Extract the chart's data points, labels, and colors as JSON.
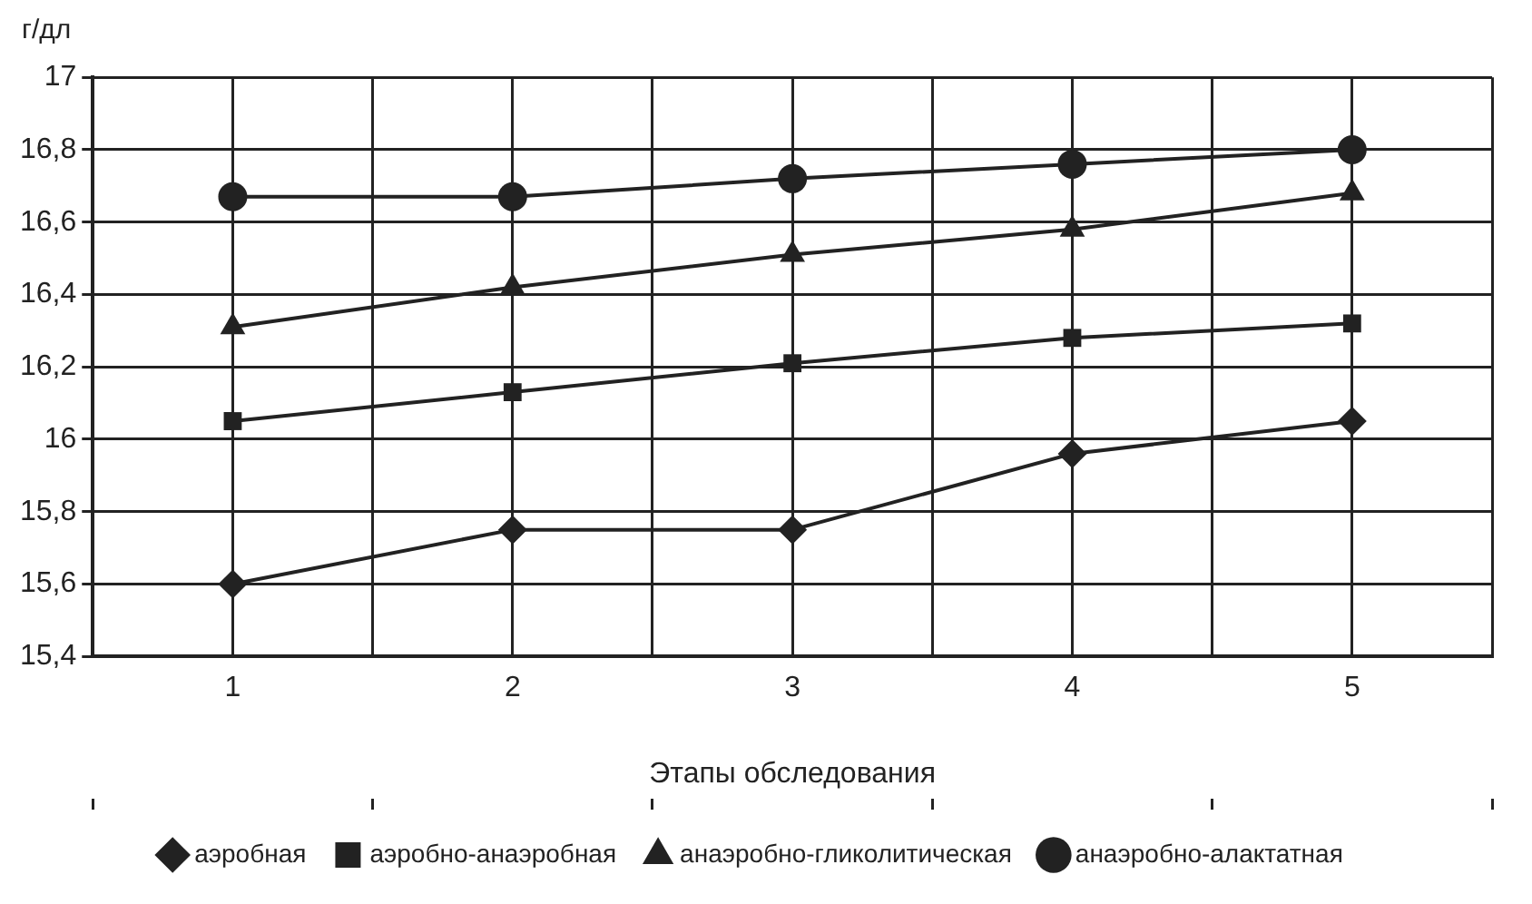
{
  "chart_data": {
    "type": "line",
    "ylabel": "г/дл",
    "xlabel": "Этапы обследования",
    "categories": [
      "1",
      "2",
      "3",
      "4",
      "5"
    ],
    "series": [
      {
        "name": "аэробная",
        "color": "#222222",
        "marker": "diamond",
        "values": [
          15.6,
          15.75,
          15.75,
          15.96,
          16.05
        ]
      },
      {
        "name": "аэробно-анаэробная",
        "color": "#222222",
        "marker": "square",
        "values": [
          16.05,
          16.13,
          16.21,
          16.28,
          16.32
        ]
      },
      {
        "name": "анаэробно-гликолитическая",
        "color": "#222222",
        "marker": "triangle",
        "values": [
          16.31,
          16.42,
          16.51,
          16.58,
          16.68
        ]
      },
      {
        "name": "анаэробно-алактатная",
        "color": "#222222",
        "marker": "circle",
        "values": [
          16.67,
          16.67,
          16.72,
          16.76,
          16.8
        ]
      }
    ],
    "ylim": [
      15.4,
      17
    ],
    "yticks": [
      {
        "value": 15.4,
        "label": "15,4"
      },
      {
        "value": 15.6,
        "label": "15,6"
      },
      {
        "value": 15.8,
        "label": "15,8"
      },
      16,
      {
        "value": 16.2,
        "label": "16,2"
      },
      {
        "value": 16.4,
        "label": "16,4"
      },
      {
        "value": 16.6,
        "label": "16,6"
      },
      {
        "value": 16.8,
        "label": "16,8"
      },
      17
    ],
    "grid": true,
    "legend": "bottom",
    "line_style": "solid"
  }
}
